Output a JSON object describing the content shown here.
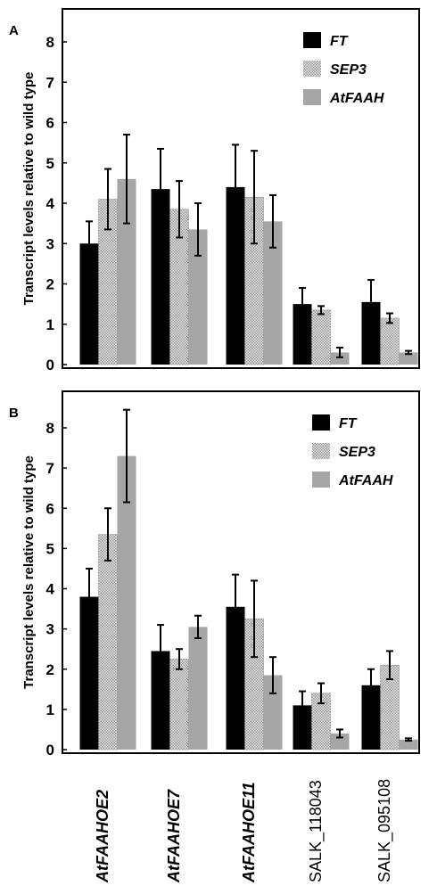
{
  "figure": {
    "panels": [
      {
        "letter": "A",
        "ylabel": "Transcript levels relative to wild type",
        "yticks": [
          "0",
          "1",
          "2",
          "3",
          "4",
          "5",
          "6",
          "7",
          "8"
        ],
        "legend": [
          "FT",
          "SEP3",
          "AtFAAH"
        ]
      },
      {
        "letter": "B",
        "ylabel": "Transcript levels relative to wild type",
        "yticks": [
          "0",
          "1",
          "2",
          "3",
          "4",
          "5",
          "6",
          "7",
          "8"
        ],
        "legend": [
          "FT",
          "SEP3",
          "AtFAAH"
        ]
      }
    ],
    "categories": [
      "AtFAAHOE2",
      "AtFAAHOE7",
      "AtFAAHOE11",
      "SALK_118043",
      "SALK_095108"
    ]
  },
  "chart_data": [
    {
      "type": "bar",
      "panel": "A",
      "categories": [
        "AtFAAHOE2",
        "AtFAAHOE7",
        "AtFAAHOE11",
        "SALK_118043",
        "SALK_095108"
      ],
      "series": [
        {
          "name": "FT",
          "values": [
            3.0,
            4.35,
            4.4,
            1.5,
            1.55
          ],
          "errors": [
            0.55,
            1.0,
            1.05,
            0.4,
            0.55
          ],
          "color": "#000000",
          "fill": "solid"
        },
        {
          "name": "SEP3",
          "values": [
            4.1,
            3.85,
            4.15,
            1.35,
            1.15
          ],
          "errors": [
            0.75,
            0.7,
            1.15,
            0.1,
            0.12
          ],
          "color": "#c8c8c8",
          "fill": "checkered"
        },
        {
          "name": "AtFAAH",
          "values": [
            4.6,
            3.35,
            3.55,
            0.3,
            0.3
          ],
          "errors": [
            1.1,
            0.65,
            0.65,
            0.12,
            0.04
          ],
          "color": "#a6a6a6",
          "fill": "solid"
        }
      ],
      "ylabel": "Transcript levels relative to wild type",
      "ylim": [
        0,
        8.6
      ],
      "legend_position": "top-right",
      "grid": false
    },
    {
      "type": "bar",
      "panel": "B",
      "categories": [
        "AtFAAHOE2",
        "AtFAAHOE7",
        "AtFAAHOE11",
        "SALK_118043",
        "SALK_095108"
      ],
      "series": [
        {
          "name": "FT",
          "values": [
            3.8,
            2.45,
            3.55,
            1.1,
            1.6
          ],
          "errors": [
            0.7,
            0.65,
            0.8,
            0.35,
            0.4
          ],
          "color": "#000000",
          "fill": "solid"
        },
        {
          "name": "SEP3",
          "values": [
            5.35,
            2.25,
            3.25,
            1.4,
            2.1
          ],
          "errors": [
            0.65,
            0.25,
            0.95,
            0.25,
            0.35
          ],
          "color": "#c8c8c8",
          "fill": "checkered"
        },
        {
          "name": "AtFAAH",
          "values": [
            7.3,
            3.05,
            1.85,
            0.4,
            0.25
          ],
          "errors": [
            1.15,
            0.28,
            0.45,
            0.1,
            0.03
          ],
          "color": "#a6a6a6",
          "fill": "solid"
        }
      ],
      "ylabel": "Transcript levels relative to wild type",
      "ylim": [
        0,
        8.6
      ],
      "legend_position": "top-right",
      "grid": false
    }
  ]
}
